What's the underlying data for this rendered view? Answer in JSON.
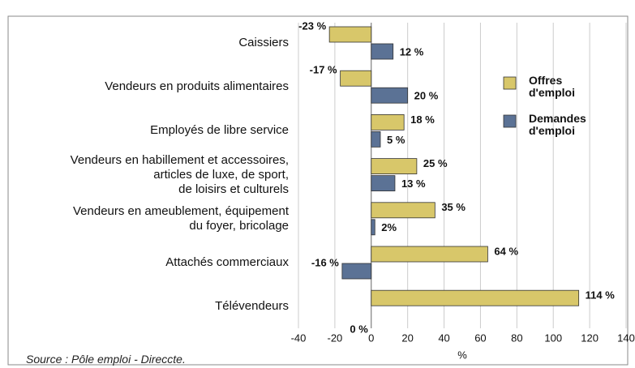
{
  "chart_data": {
    "type": "hbar",
    "categories": [
      "Caissiers",
      "Vendeurs en produits alimentaires",
      "Employés de libre service",
      "Vendeurs en habillement et accessoires,\narticles de luxe, de sport,\nde loisirs et culturels",
      "Vendeurs en ameublement, équipement\ndu foyer, bricolage",
      "Attachés commerciaux",
      "Télévendeurs"
    ],
    "series": [
      {
        "name": "Offres d'emploi",
        "color": "#d8c76a",
        "values": [
          -23,
          -17,
          18,
          25,
          35,
          64,
          114
        ],
        "value_labels": [
          "-23 %",
          "-17 %",
          "18 %",
          "25 %",
          "35 %",
          "64 %",
          "114 %"
        ]
      },
      {
        "name": "Demandes d'emploi",
        "color": "#5b7295",
        "values": [
          12,
          20,
          5,
          13,
          2,
          -16,
          0
        ],
        "value_labels": [
          "12 %",
          "20 %",
          "5 %",
          "13 %",
          "2%",
          "-16 %",
          "0 %"
        ]
      }
    ],
    "xlim": [
      -40,
      140
    ],
    "xticks": [
      -40,
      -20,
      0,
      20,
      40,
      60,
      80,
      100,
      120,
      140
    ],
    "xlabel": "%",
    "grid": true,
    "legend": "upper right",
    "source": "Source : Pôle emploi - Direccte."
  }
}
